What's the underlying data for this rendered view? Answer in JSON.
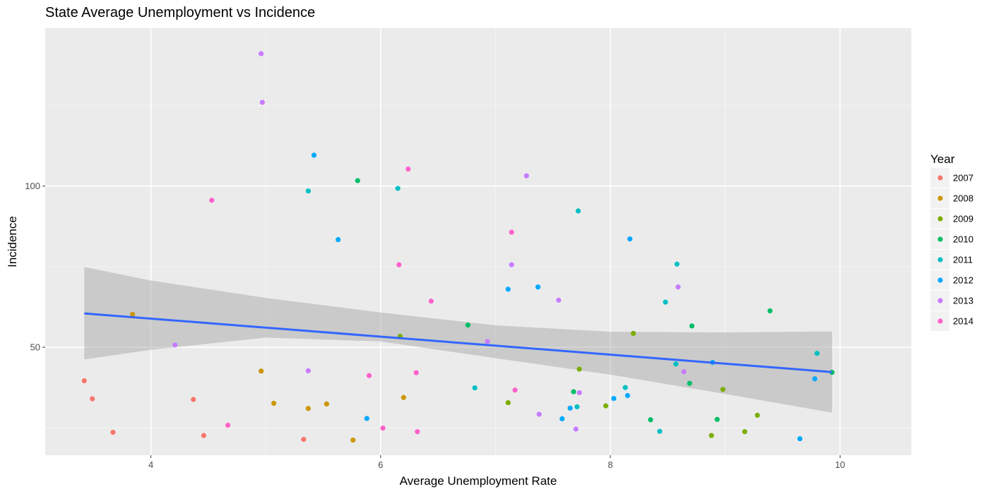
{
  "chart_data": {
    "type": "scatter",
    "title": "State Average Unemployment vs Incidence",
    "xlabel": "Average Unemployment Rate",
    "ylabel": "Incidence",
    "xlim": [
      3.08,
      10.62
    ],
    "ylim": [
      16.5,
      149.0
    ],
    "x_ticks": [
      4,
      6,
      8,
      10
    ],
    "y_ticks": [
      50,
      100
    ],
    "x_minor": [
      5,
      7,
      9
    ],
    "y_minor": [
      25,
      75,
      125
    ],
    "grid": true,
    "legend": {
      "title": "Year",
      "placement": "right"
    },
    "series": [
      {
        "name": "2007",
        "color": "#F8766D",
        "points": [
          [
            3.42,
            39.6
          ],
          [
            3.49,
            34.0
          ],
          [
            3.67,
            23.6
          ],
          [
            4.37,
            33.8
          ],
          [
            4.46,
            22.6
          ],
          [
            5.33,
            21.4
          ]
        ]
      },
      {
        "name": "2008",
        "color": "#CD9600",
        "points": [
          [
            3.84,
            60.2
          ],
          [
            4.96,
            42.6
          ],
          [
            5.07,
            32.6
          ],
          [
            5.37,
            31.0
          ],
          [
            5.53,
            32.4
          ],
          [
            5.76,
            21.2
          ],
          [
            6.2,
            34.4
          ]
        ]
      },
      {
        "name": "2009",
        "color": "#7CAE00",
        "points": [
          [
            6.17,
            53.4
          ],
          [
            7.11,
            32.8
          ],
          [
            7.73,
            43.2
          ],
          [
            7.96,
            31.8
          ],
          [
            8.2,
            54.3
          ],
          [
            8.88,
            22.6
          ],
          [
            8.98,
            36.9
          ],
          [
            9.17,
            23.8
          ],
          [
            9.28,
            28.9
          ]
        ]
      },
      {
        "name": "2010",
        "color": "#00BE67",
        "points": [
          [
            5.8,
            101.7
          ],
          [
            6.76,
            56.9
          ],
          [
            7.68,
            36.2
          ],
          [
            8.35,
            27.5
          ],
          [
            8.69,
            38.8
          ],
          [
            8.71,
            56.6
          ],
          [
            8.93,
            27.6
          ],
          [
            9.39,
            61.3
          ],
          [
            9.93,
            42.2
          ]
        ]
      },
      {
        "name": "2011",
        "color": "#00BFC4",
        "points": [
          [
            5.37,
            98.5
          ],
          [
            6.15,
            99.3
          ],
          [
            6.82,
            37.4
          ],
          [
            7.71,
            31.5
          ],
          [
            7.72,
            92.3
          ],
          [
            8.13,
            37.5
          ],
          [
            8.43,
            23.9
          ],
          [
            8.48,
            64.0
          ],
          [
            8.57,
            44.8
          ],
          [
            8.58,
            75.8
          ],
          [
            9.8,
            48.1
          ]
        ]
      },
      {
        "name": "2012",
        "color": "#00A9FF",
        "points": [
          [
            5.42,
            109.6
          ],
          [
            5.63,
            83.4
          ],
          [
            5.88,
            27.9
          ],
          [
            7.11,
            68.0
          ],
          [
            7.37,
            68.7
          ],
          [
            7.58,
            27.8
          ],
          [
            7.65,
            31.1
          ],
          [
            8.03,
            34.1
          ],
          [
            8.15,
            35.0
          ],
          [
            8.17,
            83.6
          ],
          [
            8.89,
            45.3
          ],
          [
            9.65,
            21.6
          ],
          [
            9.78,
            40.2
          ]
        ]
      },
      {
        "name": "2013",
        "color": "#C77CFF",
        "points": [
          [
            4.21,
            50.7
          ],
          [
            4.96,
            141.1
          ],
          [
            4.97,
            126.0
          ],
          [
            5.37,
            42.7
          ],
          [
            6.93,
            51.8
          ],
          [
            7.14,
            75.6
          ],
          [
            7.27,
            103.2
          ],
          [
            7.38,
            29.2
          ],
          [
            7.55,
            64.6
          ],
          [
            7.7,
            24.6
          ],
          [
            7.73,
            35.9
          ],
          [
            8.59,
            68.7
          ],
          [
            8.64,
            42.4
          ]
        ]
      },
      {
        "name": "2014",
        "color": "#FF61CC",
        "points": [
          [
            4.53,
            95.6
          ],
          [
            4.67,
            25.8
          ],
          [
            5.9,
            41.2
          ],
          [
            6.02,
            24.9
          ],
          [
            6.16,
            75.6
          ],
          [
            6.24,
            105.3
          ],
          [
            6.31,
            42.1
          ],
          [
            6.32,
            23.8
          ],
          [
            6.44,
            64.3
          ],
          [
            7.14,
            85.7
          ],
          [
            7.17,
            36.7
          ]
        ]
      }
    ],
    "fit_line": {
      "name": "linear fit",
      "color": "#3366FF",
      "x": [
        3.42,
        9.93
      ],
      "y": [
        60.5,
        42.3
      ]
    },
    "confidence_band": {
      "color": "#999999",
      "x": [
        3.42,
        4.0,
        5.0,
        6.0,
        7.0,
        8.0,
        9.0,
        9.93
      ],
      "lower": [
        46.2,
        49.2,
        53.0,
        51.8,
        46.6,
        41.5,
        35.5,
        29.7
      ],
      "upper": [
        74.9,
        70.7,
        65.3,
        60.8,
        56.8,
        54.8,
        54.6,
        54.9
      ]
    }
  }
}
